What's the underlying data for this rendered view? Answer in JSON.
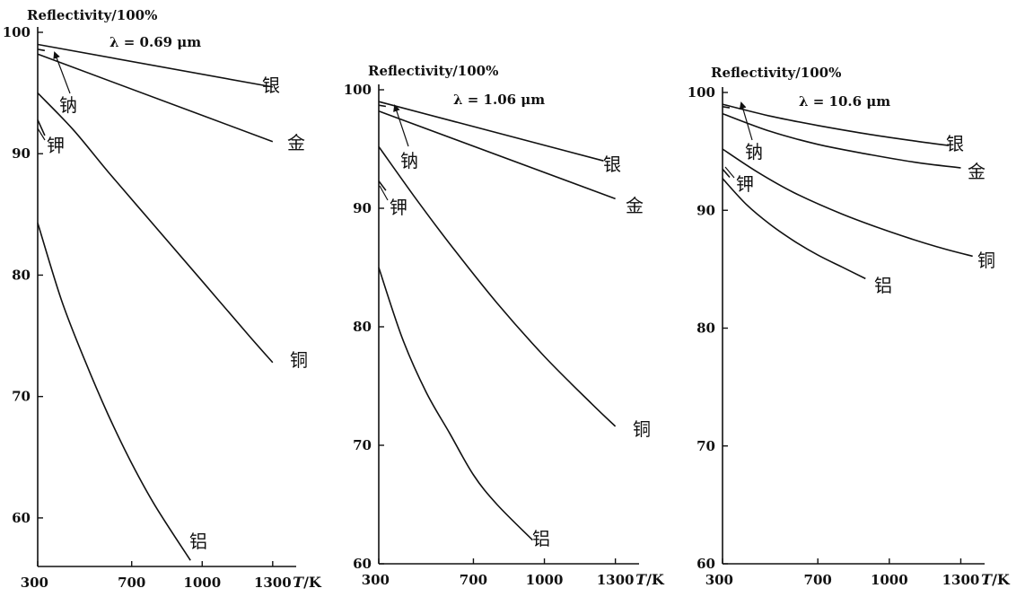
{
  "chart_data": [
    {
      "type": "line",
      "ylabel": "Reflectivity/100%",
      "xlabel": "T/K",
      "annotation": "λ = 0.69 μm",
      "xlim": [
        300,
        1400
      ],
      "ylim": [
        56,
        100
      ],
      "xticks": [
        300,
        700,
        1000,
        1300
      ],
      "yticks": [
        60,
        70,
        80,
        90,
        100
      ],
      "grid": false,
      "series": [
        {
          "name": "银",
          "x": [
            300,
            1300
          ],
          "y": [
            99.0,
            95.5
          ]
        },
        {
          "name": "钠",
          "x": [
            300,
            330
          ],
          "y": [
            98.6,
            98.5
          ]
        },
        {
          "name": "金",
          "x": [
            300,
            1300
          ],
          "y": [
            98.2,
            91.0
          ]
        },
        {
          "name": "铜",
          "x": [
            300,
            450,
            600,
            800,
            1000,
            1200,
            1300
          ],
          "y": [
            95.0,
            92.0,
            88.5,
            84.0,
            79.5,
            75.0,
            72.8
          ]
        },
        {
          "name": "钾",
          "x": [
            300,
            330
          ],
          "y": [
            92.8,
            91.5
          ]
        },
        {
          "name": "铝",
          "x": [
            300,
            400,
            500,
            600,
            700,
            800,
            950
          ],
          "y": [
            84.3,
            78.0,
            73.0,
            68.5,
            64.5,
            61.0,
            56.5
          ]
        }
      ]
    },
    {
      "type": "line",
      "ylabel": "Reflectivity/100%",
      "xlabel": "T/K",
      "annotation": "λ = 1.06 μm",
      "xlim": [
        300,
        1400
      ],
      "ylim": [
        60,
        100
      ],
      "xticks": [
        300,
        700,
        1000,
        1300
      ],
      "yticks": [
        60,
        70,
        80,
        90,
        100
      ],
      "grid": false,
      "series": [
        {
          "name": "银",
          "x": [
            300,
            1250
          ],
          "y": [
            99.0,
            94.0
          ]
        },
        {
          "name": "钠",
          "x": [
            300,
            330
          ],
          "y": [
            98.7,
            98.6
          ]
        },
        {
          "name": "金",
          "x": [
            300,
            1300
          ],
          "y": [
            98.2,
            90.8
          ]
        },
        {
          "name": "铜",
          "x": [
            300,
            450,
            600,
            800,
            1000,
            1200,
            1300
          ],
          "y": [
            95.2,
            91.0,
            87.0,
            82.0,
            77.5,
            73.5,
            71.6
          ]
        },
        {
          "name": "钾",
          "x": [
            300,
            330
          ],
          "y": [
            92.3,
            91.5
          ]
        },
        {
          "name": "铝",
          "x": [
            300,
            400,
            500,
            600,
            700,
            800,
            950
          ],
          "y": [
            85.0,
            79.0,
            74.5,
            71.0,
            67.5,
            65.0,
            62.0
          ]
        }
      ]
    },
    {
      "type": "line",
      "ylabel": "Reflectivity/100%",
      "xlabel": "T/K",
      "annotation": "λ = 10.6 μm",
      "xlim": [
        300,
        1400
      ],
      "ylim": [
        60,
        100
      ],
      "xticks": [
        300,
        700,
        1000,
        1300
      ],
      "yticks": [
        60,
        70,
        80,
        90,
        100
      ],
      "grid": false,
      "series": [
        {
          "name": "银",
          "x": [
            300,
            500,
            700,
            900,
            1100,
            1250
          ],
          "y": [
            99.0,
            98.0,
            97.2,
            96.5,
            95.9,
            95.5
          ]
        },
        {
          "name": "钠",
          "x": [
            300,
            330
          ],
          "y": [
            98.8,
            98.7
          ]
        },
        {
          "name": "金",
          "x": [
            300,
            500,
            700,
            900,
            1100,
            1300
          ],
          "y": [
            98.2,
            96.7,
            95.6,
            94.8,
            94.1,
            93.6
          ]
        },
        {
          "name": "铜",
          "x": [
            300,
            450,
            600,
            800,
            1000,
            1200,
            1350
          ],
          "y": [
            95.2,
            93.2,
            91.5,
            89.7,
            88.2,
            86.9,
            86.1
          ]
        },
        {
          "name": "钾",
          "x": [
            300,
            330
          ],
          "y": [
            93.5,
            92.8
          ]
        },
        {
          "name": "铝",
          "x": [
            300,
            400,
            500,
            600,
            700,
            800,
            900
          ],
          "y": [
            92.7,
            90.5,
            88.8,
            87.4,
            86.2,
            85.2,
            84.2
          ]
        }
      ]
    }
  ]
}
